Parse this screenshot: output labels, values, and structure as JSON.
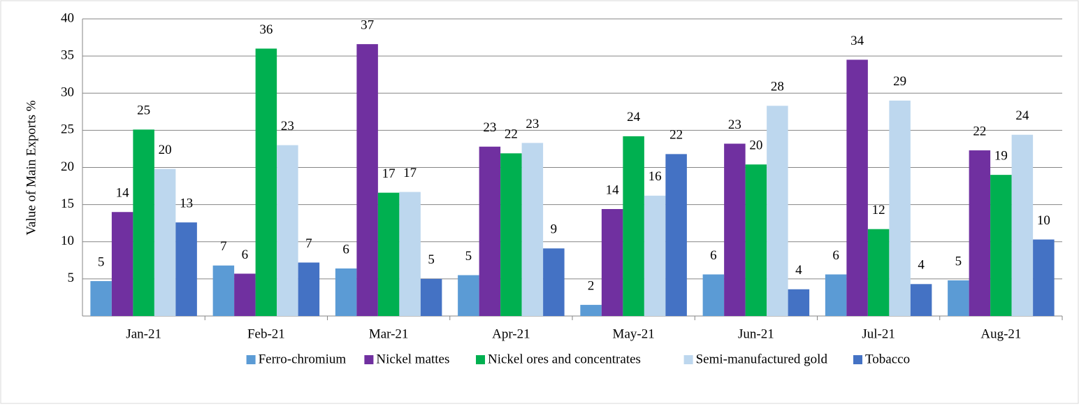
{
  "chart_data": {
    "type": "bar",
    "y_label": "Value of Main Exports  %",
    "categories": [
      "Jan-21",
      "Feb-21",
      "Mar-21",
      "Apr-21",
      "May-21",
      "Jun-21",
      "Jul-21",
      "Aug-21"
    ],
    "series": [
      {
        "name": "Ferro-chromium",
        "color": "#5b9bd5",
        "values": [
          4.7,
          6.8,
          6.4,
          5.5,
          1.5,
          5.6,
          5.6,
          4.8
        ],
        "value_labels": [
          "5",
          "7",
          "6",
          "5",
          "2",
          "6",
          "6",
          "5"
        ]
      },
      {
        "name": "Nickel mattes",
        "color": "#7030a0",
        "values": [
          14.0,
          5.7,
          36.6,
          22.8,
          14.4,
          23.2,
          34.5,
          22.3
        ],
        "value_labels": [
          "14",
          "6",
          "37",
          "23",
          "14",
          "23",
          "34",
          "22"
        ]
      },
      {
        "name": "Nickel ores and concentrates",
        "color": "#00b050",
        "values": [
          25.1,
          36.0,
          16.6,
          21.9,
          24.2,
          20.4,
          11.7,
          19.0
        ],
        "value_labels": [
          "25",
          "36",
          "17",
          "22",
          "24",
          "20",
          "12",
          "19"
        ]
      },
      {
        "name": "Semi-manufactured gold",
        "color": "#bdd7ee",
        "values": [
          19.8,
          23.0,
          16.7,
          23.3,
          16.2,
          28.3,
          29.0,
          24.4
        ],
        "value_labels": [
          "20",
          "23",
          "17",
          "23",
          "16",
          "28",
          "29",
          "24"
        ]
      },
      {
        "name": "Tobacco",
        "color": "#4472c4",
        "values": [
          12.6,
          7.2,
          5.0,
          9.1,
          21.8,
          3.6,
          4.3,
          10.3
        ],
        "value_labels": [
          "13",
          "7",
          "5",
          "9",
          "22",
          "4",
          "4",
          "10"
        ]
      }
    ],
    "ylim": [
      0,
      40
    ],
    "yticks": [
      5,
      10,
      15,
      20,
      25,
      30,
      35,
      40
    ],
    "grid": true,
    "legend": "bottom"
  }
}
